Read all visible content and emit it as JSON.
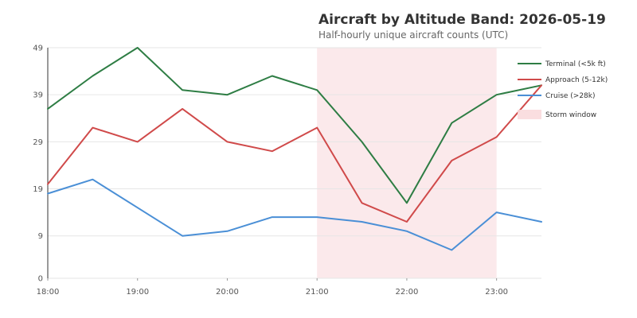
{
  "chart_data": {
    "type": "line",
    "title": "Aircraft by Altitude Band: 2026-05-19",
    "subtitle": "Half-hourly unique aircraft counts (UTC)",
    "xlabel": "",
    "ylabel": "",
    "x": [
      "18:00",
      "18:30",
      "19:00",
      "19:30",
      "20:00",
      "20:30",
      "21:00",
      "21:30",
      "22:00",
      "22:30",
      "23:00",
      "23:30"
    ],
    "x_tick_labels": [
      "18:00",
      "19:00",
      "20:00",
      "21:00",
      "22:00",
      "23:00"
    ],
    "y_ticks": [
      0,
      9,
      19,
      29,
      39,
      49
    ],
    "ylim": [
      0,
      49
    ],
    "grid": true,
    "legend_placement": "top-right",
    "series": [
      {
        "name": "Terminal (<5k ft)",
        "color": "#2e7d44",
        "values": [
          36,
          43,
          49,
          40,
          39,
          43,
          40,
          29,
          16,
          33,
          39,
          41
        ]
      },
      {
        "name": "Approach (5-12k)",
        "color": "#d04a4a",
        "values": [
          20,
          32,
          29,
          36,
          29,
          27,
          32,
          16,
          12,
          25,
          30,
          41
        ]
      },
      {
        "name": "Cruise (>28k)",
        "color": "#4a8fd6",
        "values": [
          18,
          21,
          15,
          9,
          10,
          13,
          13,
          12,
          10,
          6,
          14,
          12
        ]
      }
    ],
    "shaded_regions": [
      {
        "name": "Storm window",
        "x_start": "21:00",
        "x_end": "23:00",
        "color": "#f9dadd"
      }
    ]
  }
}
